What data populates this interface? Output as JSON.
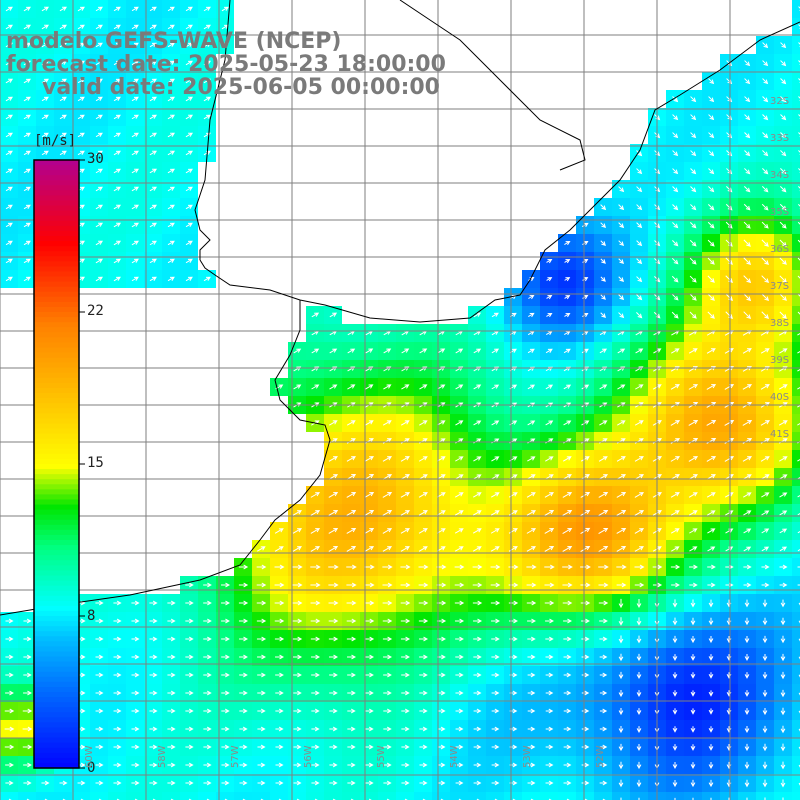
{
  "title": {
    "model": "modelo GEFS-WAVE (NCEP)",
    "forecast": "forecast date: 2025-05-23 18:00:00",
    "valid": "valid date: 2025-06-05 00:00:00"
  },
  "colorbar": {
    "unit": "[m/s]",
    "ticks": [
      "30",
      "22",
      "15",
      "8",
      "0"
    ],
    "colors": [
      "#0000ff",
      "#0080ff",
      "#00c0ff",
      "#00ffff",
      "#00ff80",
      "#00ff00",
      "#80ff00",
      "#ffff00",
      "#ff8000",
      "#ff0000",
      "#d00060",
      "#b00090"
    ]
  },
  "lat_labels": [
    "32S",
    "33S",
    "34S",
    "35S",
    "36S",
    "37S",
    "38S",
    "39S",
    "40S",
    "41S"
  ],
  "lon_labels": [
    "60W",
    "58W",
    "57W",
    "56W",
    "55W",
    "54W",
    "53W",
    "52W"
  ],
  "colors": {
    "land": "#ffffff",
    "grid": "#7f7f7f",
    "coast": "#000000",
    "arrow": "#ffffff",
    "title": "#7a7a7a"
  }
}
